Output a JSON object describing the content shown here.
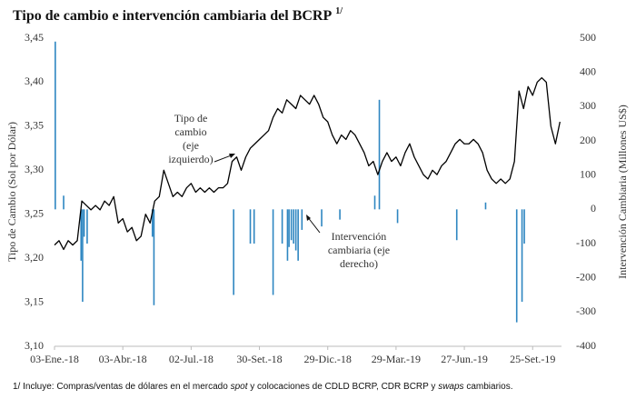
{
  "chart_data": {
    "type": "line",
    "title": "Tipo de cambio e intervención cambiaria del BCRP",
    "title_note": "1/",
    "y_label": "Tipo de Cambio (Sol por Dólar)",
    "y2_label": "Intervención Cambiaria (Millones US$)",
    "xlim": [
      0,
      668
    ],
    "xticks": [
      {
        "value": 0,
        "label": "03-Ene.-18"
      },
      {
        "value": 90,
        "label": "03-Abr.-18"
      },
      {
        "value": 180,
        "label": "02-Jul.-18"
      },
      {
        "value": 270,
        "label": "30-Set.-18"
      },
      {
        "value": 360,
        "label": "29-Dic.-18"
      },
      {
        "value": 450,
        "label": "29-Mar.-19"
      },
      {
        "value": 540,
        "label": "27-Jun.-19"
      },
      {
        "value": 630,
        "label": "25-Set.-19"
      }
    ],
    "ylim": [
      3.1,
      3.45
    ],
    "yticks": [
      {
        "value": 3.1,
        "label": "3,10"
      },
      {
        "value": 3.15,
        "label": "3,15"
      },
      {
        "value": 3.2,
        "label": "3,20"
      },
      {
        "value": 3.25,
        "label": "3,25"
      },
      {
        "value": 3.3,
        "label": "3,30"
      },
      {
        "value": 3.35,
        "label": "3,35"
      },
      {
        "value": 3.4,
        "label": "3,40"
      },
      {
        "value": 3.45,
        "label": "3,45"
      }
    ],
    "y2lim": [
      -400,
      500
    ],
    "y2ticks": [
      -400,
      -300,
      -200,
      -100,
      0,
      100,
      200,
      300,
      400,
      500
    ],
    "series": [
      {
        "type": "line",
        "color": "#000000",
        "x": [
          0,
          6,
          12,
          18,
          24,
          30,
          36,
          42,
          48,
          54,
          60,
          66,
          72,
          78,
          84,
          90,
          96,
          102,
          108,
          114,
          120,
          126,
          132,
          138,
          144,
          150,
          156,
          162,
          168,
          174,
          180,
          186,
          192,
          198,
          204,
          210,
          216,
          222,
          228,
          234,
          240,
          246,
          252,
          258,
          264,
          270,
          276,
          282,
          288,
          294,
          300,
          306,
          312,
          318,
          324,
          330,
          336,
          342,
          348,
          354,
          360,
          366,
          372,
          378,
          384,
          390,
          396,
          402,
          408,
          414,
          420,
          426,
          432,
          438,
          444,
          450,
          456,
          462,
          468,
          474,
          480,
          486,
          492,
          498,
          504,
          510,
          516,
          522,
          528,
          534,
          540,
          546,
          552,
          558,
          564,
          570,
          576,
          582,
          588,
          594,
          600,
          606,
          612,
          618,
          624,
          630,
          636,
          642,
          648,
          654,
          660,
          666
        ],
        "values": [
          3.215,
          3.22,
          3.21,
          3.22,
          3.215,
          3.22,
          3.265,
          3.26,
          3.255,
          3.26,
          3.255,
          3.265,
          3.26,
          3.27,
          3.24,
          3.245,
          3.23,
          3.235,
          3.22,
          3.225,
          3.25,
          3.24,
          3.265,
          3.27,
          3.3,
          3.285,
          3.27,
          3.275,
          3.27,
          3.28,
          3.285,
          3.275,
          3.28,
          3.275,
          3.28,
          3.275,
          3.28,
          3.28,
          3.285,
          3.31,
          3.315,
          3.3,
          3.315,
          3.325,
          3.33,
          3.335,
          3.34,
          3.345,
          3.36,
          3.37,
          3.365,
          3.38,
          3.375,
          3.37,
          3.385,
          3.38,
          3.375,
          3.385,
          3.375,
          3.36,
          3.355,
          3.34,
          3.33,
          3.34,
          3.335,
          3.345,
          3.34,
          3.33,
          3.32,
          3.305,
          3.31,
          3.295,
          3.31,
          3.32,
          3.31,
          3.315,
          3.305,
          3.32,
          3.33,
          3.315,
          3.305,
          3.295,
          3.29,
          3.3,
          3.295,
          3.305,
          3.31,
          3.32,
          3.33,
          3.335,
          3.33,
          3.33,
          3.335,
          3.33,
          3.32,
          3.3,
          3.29,
          3.285,
          3.29,
          3.285,
          3.29,
          3.31,
          3.39,
          3.37,
          3.395,
          3.385,
          3.4,
          3.405,
          3.4,
          3.35,
          3.33,
          3.355
        ]
      },
      {
        "type": "bar",
        "axis": "y2",
        "color": "#2e86c1",
        "x": [
          1,
          12,
          35,
          37,
          39,
          43,
          129,
          131,
          236,
          258,
          263,
          288,
          300,
          307,
          309,
          312,
          315,
          318,
          321,
          326,
          352,
          376,
          422,
          428,
          452,
          530,
          568,
          609,
          616,
          619
        ],
        "values": [
          490,
          40,
          -150,
          -270,
          -80,
          -100,
          -80,
          -280,
          -250,
          -100,
          -100,
          -250,
          -100,
          -150,
          -110,
          -90,
          -100,
          -120,
          -150,
          -60,
          -50,
          -30,
          40,
          320,
          -40,
          -90,
          20,
          -330,
          -270,
          -100
        ]
      }
    ],
    "annotations": [
      {
        "lines": [
          "Tipo de",
          "cambio",
          "(eje",
          "izquierdo)"
        ]
      },
      {
        "lines": [
          "Intervención",
          "cambiaria (eje",
          "derecho)"
        ]
      }
    ],
    "footnote": [
      "1/ Incluye: Compras/ventas de dólares en el mercado ",
      "spot",
      " y colocaciones de CDLD BCRP, CDR BCRP y ",
      "swaps",
      " cambiarios."
    ]
  }
}
